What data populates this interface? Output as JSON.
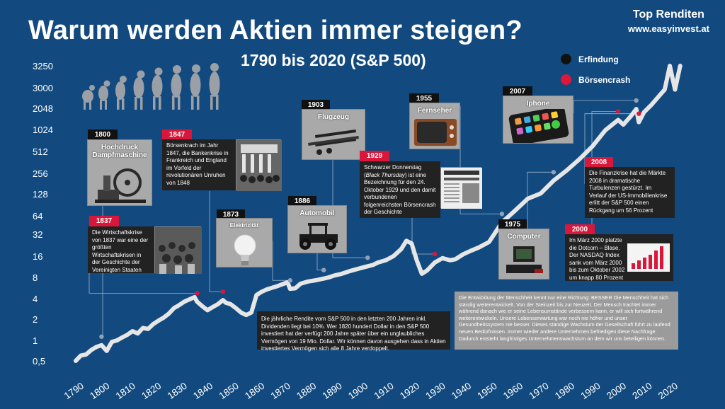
{
  "header": {
    "title": "Warum werden Aktien immer steigen?",
    "subtitle": "1790 bis 2020 (S&P 500)",
    "brand_name": "Top Renditen",
    "brand_url": "www.easyinvest.at"
  },
  "legend": {
    "items": [
      {
        "label": "Erfindung",
        "color": "#111111"
      },
      {
        "label": "Börsencrash",
        "color": "#e0173a"
      }
    ]
  },
  "colors": {
    "background": "#124a80",
    "line": "#e6e6e6",
    "crash": "#d8173a",
    "invention": "#111111"
  },
  "events": {
    "e1800": {
      "year": "1800",
      "title": "Hochdruck Dampfmaschine"
    },
    "e1837": {
      "year": "1837",
      "text": "Die Wirtschaftskrise von 1837 war eine der größten Wirtschaftskrisen in der Geschichte der Vereinigten Staaten"
    },
    "e1847": {
      "year": "1847",
      "text": "Börsenkrach im Jahr 1847, die Bankenkrise in Frankreich und England im Vorfeld der revolutionären Unruhen von 1848"
    },
    "e1873": {
      "year": "1873",
      "title": "Elektrizität"
    },
    "e1886": {
      "year": "1886",
      "title": "Automobil"
    },
    "e1903": {
      "year": "1903",
      "title": "Flugzeug"
    },
    "e1929": {
      "year": "1929",
      "text_a": "Schwarzer Donnerstag (",
      "text_em": "Black Thursday",
      "text_b": ") ist eine Bezeichnung für den 24. Oktober 1929 und den damit verbundenen folgenreichsten Börsencrash der Geschichte"
    },
    "e1955": {
      "year": "1955",
      "title": "Fernseher"
    },
    "e1975": {
      "year": "1975",
      "title": "Computer"
    },
    "e2000": {
      "year": "2000",
      "text": "Im März 2000 platzte die Dotcom – Blase. Der NASDAQ Index sank vom März 2000  bis zum Oktober 2002 um knapp 80 Prozent"
    },
    "e2007": {
      "year": "2007",
      "title": "Iphone"
    },
    "e2008": {
      "year": "2008",
      "text": "Die Finanzkrise hat die Märkte 2008 in dramatische Turbulenzen gestürzt. Im Verlauf der US-Immobilienkrise erlitt der S&P 500 einen Rückgang um  56 Prozent"
    }
  },
  "notes": {
    "return_box": "Die jährliche Rendite vom S&P 500 in den letzten 200 Jahren inkl. Dividenden liegt bei 10%. Wer 1820 hundert Dollar in den S&P 500 investiert hat der verfügt 200 Jahre später über ein unglaubliches Vermögen von 19 Mio. Dollar. Wir können davon ausgehen dass in Aktien investiertes Vermögen sich alle 8 Jahre verdoppelt.",
    "human_box": "Die Entwicklung der Menschheit kennt nur eine Richtung: BESSER Die Menschheit hat sich ständig weiterentwickelt. Von der Steinzeit bis zur Neuzeit. Der Mensch trachtet immer während danach wie er seine Lebensumstände verbessern kann, er will sich fortwährend weiterentwickeln. Unsere Lebenserwartung war noch nie höher und unser Gesundheitssystem nie besser. Dieses ständige Wachstum der Gesellschaft führt zu laufend neuen Bedürfnissen. Immer wieder andere Unternehmen befriedigen diese Nachfrage. Dadurch entsteht langfristiges Unternehmenswachstum an dem wir uns beteiligen können."
  },
  "chart_data": {
    "type": "line",
    "title": "Warum werden Aktien immer steigen?",
    "subtitle": "1790 bis 2020 (S&P 500)",
    "xlabel": "",
    "ylabel": "",
    "y_scale": "log",
    "xlim": [
      1787,
      2026
    ],
    "x_ticks": [
      "1790",
      "1800",
      "1810",
      "1820",
      "1830",
      "1840",
      "1850",
      "1860",
      "1870",
      "1880",
      "1890",
      "1900",
      "1910",
      "1920",
      "1930",
      "1940",
      "1950",
      "1960",
      "1970",
      "1980",
      "1990",
      "2000",
      "2010",
      "2020"
    ],
    "y_ticks": [
      "0,5",
      "1",
      "2",
      "4",
      "8",
      "16",
      "32",
      "64",
      "128",
      "256",
      "512",
      "1024",
      "2048",
      "3000",
      "3250"
    ],
    "grid": false,
    "legend_position": "top-right",
    "series": [
      {
        "x": [
          1790,
          1792,
          1794,
          1796,
          1798,
          1800,
          1802,
          1804,
          1806,
          1808,
          1810,
          1812,
          1814,
          1816,
          1818,
          1820,
          1822,
          1824,
          1826,
          1828,
          1830,
          1832,
          1834,
          1836,
          1837,
          1839,
          1841,
          1843,
          1845,
          1847,
          1848,
          1850,
          1852,
          1854,
          1856,
          1858,
          1860,
          1862,
          1864,
          1866,
          1868,
          1870,
          1872,
          1873,
          1875,
          1877,
          1880,
          1883,
          1886,
          1888,
          1890,
          1893,
          1896,
          1899,
          1901,
          1903,
          1905,
          1907,
          1910,
          1913,
          1916,
          1918,
          1920,
          1922,
          1924,
          1926,
          1929,
          1932,
          1935,
          1937,
          1940,
          1943,
          1946,
          1950,
          1955,
          1960,
          1965,
          1970,
          1975,
          1980,
          1985,
          1990,
          1995,
          2000,
          2002,
          2005,
          2007,
          2008,
          2010,
          2013,
          2016,
          2018,
          2020,
          2022,
          2024
        ],
        "values": [
          0.5,
          0.6,
          0.62,
          0.72,
          0.8,
          0.85,
          0.7,
          0.95,
          1.0,
          1.1,
          1.2,
          1.35,
          1.25,
          1.5,
          1.45,
          1.7,
          1.9,
          2.1,
          2.4,
          2.9,
          3.2,
          3.6,
          3.9,
          4.2,
          3.6,
          3.1,
          2.7,
          3.0,
          3.3,
          3.8,
          3.5,
          3.3,
          2.9,
          2.5,
          2.3,
          2.5,
          4.5,
          5.0,
          5.4,
          5.7,
          6.0,
          6.4,
          6.8,
          5.5,
          5.6,
          6.5,
          7.0,
          7.3,
          7.7,
          8.0,
          8.5,
          9.0,
          9.8,
          10.5,
          11.0,
          11.5,
          12.0,
          13.0,
          14.0,
          16.0,
          20.0,
          26.0,
          24.0,
          14.0,
          9.0,
          10.0,
          13.0,
          15.0,
          14.0,
          14.5,
          17.0,
          19.0,
          21.0,
          25.0,
          50.0,
          75.0,
          110.0,
          130.0,
          200.0,
          280.0,
          400.0,
          600.0,
          1000.0,
          1400.0,
          1200.0,
          1600.0,
          2000.0,
          1300.0,
          1800.0,
          2200.0,
          2600.0,
          2900.0,
          3300.0,
          2900.0,
          3400.0
        ]
      }
    ],
    "events": [
      {
        "year": 1800,
        "type": "invention",
        "label": "Hochdruck Dampfmaschine"
      },
      {
        "year": 1837,
        "type": "crash",
        "label": "1837"
      },
      {
        "year": 1847,
        "type": "crash",
        "label": "1847"
      },
      {
        "year": 1873,
        "type": "invention",
        "label": "Elektrizität"
      },
      {
        "year": 1886,
        "type": "invention",
        "label": "Automobil"
      },
      {
        "year": 1903,
        "type": "invention",
        "label": "Flugzeug"
      },
      {
        "year": 1929,
        "type": "crash",
        "label": "1929"
      },
      {
        "year": 1955,
        "type": "invention",
        "label": "Fernseher"
      },
      {
        "year": 1975,
        "type": "invention",
        "label": "Computer"
      },
      {
        "year": 2000,
        "type": "crash",
        "label": "2000"
      },
      {
        "year": 2007,
        "type": "invention",
        "label": "Iphone"
      },
      {
        "year": 2008,
        "type": "crash",
        "label": "2008"
      }
    ]
  }
}
